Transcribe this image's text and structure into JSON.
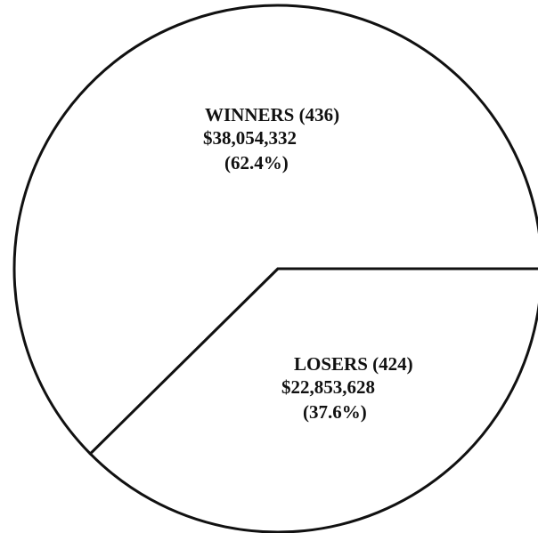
{
  "chart_data": {
    "type": "pie",
    "categories": [
      "WINNERS (436)",
      "LOSERS (424)"
    ],
    "amount_labels": [
      "$38,054,332",
      "$22,853,628"
    ],
    "values": [
      62.4,
      37.6
    ],
    "value_labels": [
      "(62.4%)",
      "(37.6%)"
    ],
    "colors": [
      "#ffffff",
      "#ffffff"
    ]
  }
}
